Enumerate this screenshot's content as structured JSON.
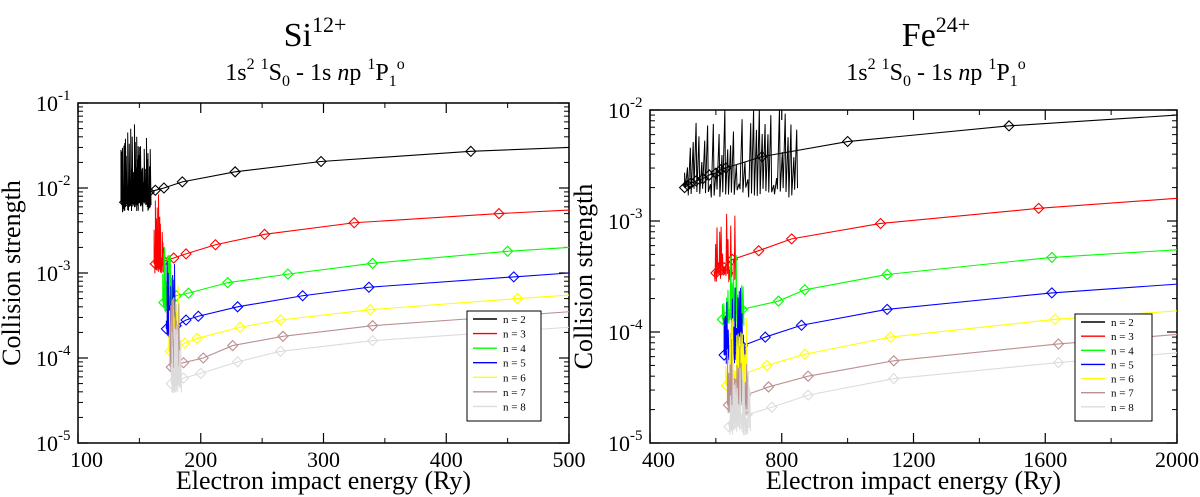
{
  "chart_data": [
    {
      "type": "line",
      "title_base": "Si",
      "title_charge": "12+",
      "subtitle": {
        "p1": "1s",
        "p1sup": "2",
        "p2sup": "1",
        "p2": "S",
        "p2sub": "0",
        "p3": " - 1s ",
        "p3n": "n",
        "p4": "p ",
        "p4sup": "1",
        "p5": "P",
        "p5sub": "1",
        "p5sup": "o"
      },
      "xlabel": "Electron impact energy (Ry)",
      "ylabel": "Collision strength",
      "xlim": [
        100,
        500
      ],
      "ylim_log10": [
        -5,
        -1
      ],
      "x_ticks": [
        "100",
        "200",
        "300",
        "400",
        "500"
      ],
      "y_ticks": [
        {
          "base": "10",
          "exp": "-5"
        },
        {
          "base": "10",
          "exp": "-4"
        },
        {
          "base": "10",
          "exp": "-3"
        },
        {
          "base": "10",
          "exp": "-2"
        },
        {
          "base": "10",
          "exp": "-1"
        }
      ],
      "legend": [
        "n = 2",
        "n = 3",
        "n = 4",
        "n = 5",
        "n = 6",
        "n = 7",
        "n = 8"
      ],
      "legend_position": "bottom-right",
      "series": [
        {
          "name": "n = 2",
          "color": "#000000",
          "threshold": 135,
          "diamonds_x": [
            138,
            141,
            145,
            148,
            152,
            158,
            163,
            170,
            185,
            228,
            298,
            420
          ],
          "diamonds_y": [
            0.0068,
            0.0073,
            0.0078,
            0.0082,
            0.0086,
            0.009,
            0.0094,
            0.01,
            0.0118,
            0.0155,
            0.0205,
            0.027
          ],
          "line_end_y": 0.03
        },
        {
          "name": "n = 3",
          "color": "#ff0000",
          "threshold": 162,
          "diamonds_x": [
            163,
            166,
            170,
            178,
            188,
            212,
            252,
            325,
            443
          ],
          "diamonds_y": [
            0.00128,
            0.00132,
            0.00138,
            0.0015,
            0.00168,
            0.00215,
            0.00285,
            0.0039,
            0.005
          ],
          "line_end_y": 0.0055
        },
        {
          "name": "n = 4",
          "color": "#00ff00",
          "threshold": 169,
          "diamonds_x": [
            170,
            174,
            180,
            190,
            222,
            271,
            340,
            450
          ],
          "diamonds_y": [
            0.00045,
            0.0005,
            0.00054,
            0.00058,
            0.00077,
            0.00097,
            0.0013,
            0.0018
          ],
          "line_end_y": 0.002
        },
        {
          "name": "n = 5",
          "color": "#0000ff",
          "threshold": 172,
          "diamonds_x": [
            172,
            176,
            180,
            188,
            198,
            230,
            283,
            337,
            455
          ],
          "diamonds_y": [
            0.00022,
            0.00023,
            0.00024,
            0.00028,
            0.00031,
            0.0004,
            0.00054,
            0.00068,
            0.0009
          ],
          "line_end_y": 0.001
        },
        {
          "name": "n = 6",
          "color": "#ffff00",
          "threshold": 174,
          "diamonds_x": [
            175,
            180,
            187,
            197,
            232,
            265,
            338,
            458
          ],
          "diamonds_y": [
            0.00012,
            0.00013,
            0.00015,
            0.00017,
            0.00023,
            0.00028,
            0.00037,
            0.0005
          ],
          "line_end_y": 0.00055
        },
        {
          "name": "n = 7",
          "color": "#bc8f8f",
          "threshold": 175,
          "diamonds_x": [
            176,
            180,
            186,
            202,
            226,
            267,
            340
          ],
          "diamonds_y": [
            7.8e-05,
            8.3e-05,
            8.8e-05,
            0.0001,
            0.00014,
            0.00018,
            0.00024
          ],
          "line_end_y": 0.00035
        },
        {
          "name": "n = 8",
          "color": "#dcdcdc",
          "threshold": 176,
          "diamonds_x": [
            176,
            180,
            186,
            200,
            230,
            265,
            340
          ],
          "diamonds_y": [
            5e-05,
            5.3e-05,
            5.8e-05,
            6.6e-05,
            9e-05,
            0.00012,
            0.00016
          ],
          "line_end_y": 0.00023
        }
      ]
    },
    {
      "type": "line",
      "title_base": "Fe",
      "title_charge": "24+",
      "subtitle": {
        "p1": "1s",
        "p1sup": "2",
        "p2sup": "1",
        "p2": "S",
        "p2sub": "0",
        "p3": " - 1s ",
        "p3n": "n",
        "p4": "p ",
        "p4sup": "1",
        "p5": "P",
        "p5sub": "1",
        "p5sup": "o"
      },
      "xlabel": "Electron impact energy (Ry)",
      "ylabel": "Collision strength",
      "xlim": [
        400,
        2000
      ],
      "ylim_log10": [
        -5,
        -2
      ],
      "x_ticks": [
        "400",
        "800",
        "1200",
        "1600",
        "2000"
      ],
      "y_ticks": [
        {
          "base": "10",
          "exp": "-5"
        },
        {
          "base": "10",
          "exp": "-4"
        },
        {
          "base": "10",
          "exp": "-3"
        },
        {
          "base": "10",
          "exp": "-2"
        }
      ],
      "legend": [
        "n = 2",
        "n = 3",
        "n = 4",
        "n = 5",
        "n = 6",
        "n = 7",
        "n = 8"
      ],
      "legend_position": "bottom-right",
      "series": [
        {
          "name": "n = 2",
          "color": "#000000",
          "threshold": 505,
          "diamonds_x": [
            505,
            515,
            525,
            540,
            560,
            580,
            600,
            615,
            630,
            740,
            1000,
            1490
          ],
          "diamonds_y": [
            0.002,
            0.0021,
            0.0022,
            0.0023,
            0.0024,
            0.0026,
            0.0027,
            0.0029,
            0.003,
            0.0038,
            0.0052,
            0.0072
          ],
          "line_end_y": 0.009
        },
        {
          "name": "n = 3",
          "color": "#ff0000",
          "threshold": 595,
          "diamonds_x": [
            600,
            615,
            625,
            650,
            730,
            830,
            1100,
            1580
          ],
          "diamonds_y": [
            0.00034,
            0.00036,
            0.00038,
            0.00045,
            0.00054,
            0.00069,
            0.00095,
            0.0013
          ],
          "line_end_y": 0.0016
        },
        {
          "name": "n = 4",
          "color": "#00ff00",
          "threshold": 620,
          "diamonds_x": [
            620,
            635,
            650,
            680,
            790,
            870,
            1120,
            1620
          ],
          "diamonds_y": [
            0.00013,
            0.00014,
            0.00015,
            0.00016,
            0.00019,
            0.00024,
            0.00033,
            0.00047
          ],
          "line_end_y": 0.00055
        },
        {
          "name": "n = 5",
          "color": "#0000ff",
          "threshold": 625,
          "diamonds_x": [
            625,
            640,
            655,
            680,
            750,
            860,
            1120,
            1620
          ],
          "diamonds_y": [
            6.2e-05,
            6.6e-05,
            7e-05,
            7.5e-05,
            9e-05,
            0.000115,
            0.00016,
            0.000225
          ],
          "line_end_y": 0.00027
        },
        {
          "name": "n = 6",
          "color": "#ffff00",
          "threshold": 630,
          "diamonds_x": [
            632,
            645,
            660,
            685,
            755,
            870,
            1130,
            1630
          ],
          "diamonds_y": [
            3.3e-05,
            3.5e-05,
            3.8e-05,
            4.2e-05,
            5e-05,
            6.3e-05,
            9e-05,
            0.00013
          ],
          "line_end_y": 0.000155
        },
        {
          "name": "n = 7",
          "color": "#bc8f8f",
          "threshold": 635,
          "diamonds_x": [
            638,
            650,
            665,
            690,
            760,
            880,
            1140,
            1640
          ],
          "diamonds_y": [
            2.2e-05,
            2.3e-05,
            2.5e-05,
            2.7e-05,
            3.2e-05,
            4e-05,
            5.5e-05,
            7.8e-05
          ],
          "line_end_y": 9.5e-05
        },
        {
          "name": "n = 8",
          "color": "#dcdcdc",
          "threshold": 640,
          "diamonds_x": [
            640,
            652,
            668,
            695,
            770,
            880,
            1140,
            1640
          ],
          "diamonds_y": [
            1.4e-05,
            1.5e-05,
            1.6e-05,
            1.8e-05,
            2.1e-05,
            2.7e-05,
            3.8e-05,
            5.3e-05
          ],
          "line_end_y": 6.5e-05
        }
      ]
    }
  ]
}
